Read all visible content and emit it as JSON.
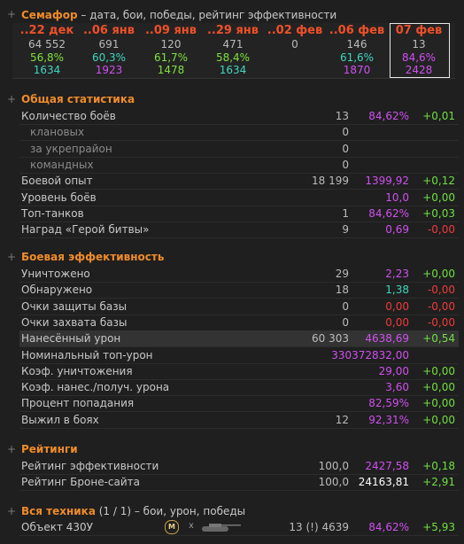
{
  "header": {
    "title": "Семафор",
    "subtitle": " – дата, бои, победы, рейтинг эффективности"
  },
  "periods": [
    {
      "date": "..22 дек",
      "battles": "64 552",
      "winrate": "56,8%",
      "winrate_color": "#7ee03e",
      "rating": "1634",
      "rating_color": "#3ed6c0"
    },
    {
      "date": "..06 янв",
      "battles": "691",
      "winrate": "60,3%",
      "winrate_color": "#3ed6c0",
      "rating": "1923",
      "rating_color": "#d050f0"
    },
    {
      "date": "..09 янв",
      "battles": "120",
      "winrate": "61,7%",
      "winrate_color": "#7ee03e",
      "rating": "1478",
      "rating_color": "#7ee03e"
    },
    {
      "date": "..29 янв",
      "battles": "471",
      "winrate": "58,4%",
      "winrate_color": "#7ee03e",
      "rating": "1634",
      "rating_color": "#3ed6c0"
    },
    {
      "date": "..02 фев",
      "battles": "0"
    },
    {
      "date": "..06 фев",
      "battles": "146",
      "winrate": "61,6%",
      "winrate_color": "#3ed6c0",
      "rating": "1870",
      "rating_color": "#d050f0"
    },
    {
      "date": "07 фев",
      "battles": "13",
      "winrate": "84,6%",
      "winrate_color": "#d050f0",
      "rating": "2428",
      "rating_color": "#d050f0",
      "current": true
    }
  ],
  "sections": [
    {
      "title": "Общая статистика",
      "rows": [
        {
          "label": "Количество боёв",
          "count": "13",
          "value": "84,62%",
          "value_color": "#d050f0",
          "delta": "+0,01",
          "delta_color": "#6fe040"
        },
        {
          "label": "клановых",
          "count": "0",
          "indent": true
        },
        {
          "label": "за укрепрайон",
          "count": "0",
          "indent": true
        },
        {
          "label": "командных",
          "count": "0",
          "indent": true
        },
        {
          "label": "Боевой опыт",
          "count": "18 199",
          "value": "1399,92",
          "value_color": "#d050f0",
          "delta": "+0,12",
          "delta_color": "#6fe040"
        },
        {
          "label": "Уровень боёв",
          "value": "10,0",
          "value_color": "#d050f0",
          "delta": "+0,00",
          "delta_color": "#6fe040"
        },
        {
          "label": "Топ-танков",
          "count": "1",
          "value": "84,62%",
          "value_color": "#d050f0",
          "delta": "+0,03",
          "delta_color": "#6fe040"
        },
        {
          "label": "Наград «Герой битвы»",
          "count": "9",
          "value": "0,69",
          "value_color": "#d050f0",
          "delta": "-0,00",
          "delta_color": "#f03a3a"
        }
      ]
    },
    {
      "title": "Боевая эффективность",
      "rows": [
        {
          "label": "Уничтожено",
          "count": "29",
          "value": "2,23",
          "value_color": "#d050f0",
          "delta": "+0,00",
          "delta_color": "#6fe040"
        },
        {
          "label": "Обнаружено",
          "count": "18",
          "value": "1,38",
          "value_color": "#3ed6c0",
          "delta": "-0,00",
          "delta_color": "#f03a3a"
        },
        {
          "label": "Очки защиты базы",
          "count": "0",
          "value": "0,00",
          "value_color": "#f03a3a",
          "delta": "-0,00",
          "delta_color": "#f03a3a"
        },
        {
          "label": "Очки захвата базы",
          "count": "0",
          "value": "0,00",
          "value_color": "#f03a3a",
          "delta": "-0,00",
          "delta_color": "#f03a3a"
        },
        {
          "label": "Нанесённый урон",
          "count": "60 303",
          "value": "4638,69",
          "value_color": "#d050f0",
          "delta": "+0,54",
          "delta_color": "#6fe040",
          "highlight": true
        },
        {
          "label": "Номинальный топ-урон",
          "value": "330372832,00",
          "value_color": "#d050f0"
        },
        {
          "label": "Коэф. уничтожения",
          "value": "29,00",
          "value_color": "#d050f0",
          "delta": "+0,00",
          "delta_color": "#6fe040"
        },
        {
          "label": "Коэф. нанес./получ. урона",
          "value": "3,60",
          "value_color": "#d050f0",
          "delta": "+0,00",
          "delta_color": "#6fe040"
        },
        {
          "label": "Процент попадания",
          "value": "82,59%",
          "value_color": "#d050f0",
          "delta": "+0,00",
          "delta_color": "#6fe040"
        },
        {
          "label": "Выжил в боях",
          "count": "12",
          "value": "92,31%",
          "value_color": "#d050f0",
          "delta": "+0,00",
          "delta_color": "#6fe040"
        }
      ]
    },
    {
      "title": "Рейтинги",
      "rows": [
        {
          "label": "Рейтинг эффективности",
          "count": "100,0",
          "value": "2427,58",
          "value_color": "#d050f0",
          "delta": "+0,18",
          "delta_color": "#6fe040"
        },
        {
          "label": "Рейтинг Броне-сайта",
          "count": "100,0",
          "value": "24163,81",
          "value_color": "#ffffff",
          "delta": "+2,91",
          "delta_color": "#6fe040"
        }
      ]
    }
  ],
  "vehicles": {
    "title": "Вся техника",
    "subtitle": " (1 / 1) – бои, урон, победы",
    "rows": [
      {
        "name": "Объект 430У",
        "badge": "M",
        "times": "x",
        "summary": "13 (!) 4639",
        "value": "84,62%",
        "value_color": "#d050f0",
        "delta": "+5,93",
        "delta_color": "#6fe040"
      }
    ]
  }
}
